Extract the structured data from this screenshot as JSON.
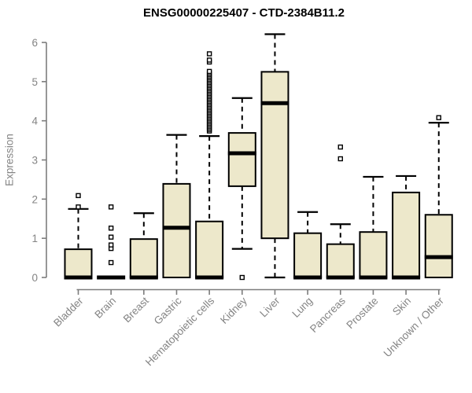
{
  "title": "ENSG00000225407 - CTD-2384B11.2",
  "chart_data": {
    "type": "boxplot",
    "title": "ENSG00000225407 - CTD-2384B11.2",
    "xlabel": "",
    "ylabel": "Expression",
    "ylim": [
      0,
      6.3
    ],
    "yticks": [
      0,
      1,
      2,
      3,
      4,
      5,
      6
    ],
    "grid": false,
    "legend": "none",
    "colors": {
      "box_fill": "#EDE8CB",
      "box_border": "#000000",
      "median": "#000000",
      "whisker": "#000000",
      "axis": "#7d7d7d",
      "tick_text": "#848484",
      "title_text": "#000000"
    },
    "categories": [
      "Bladder",
      "Brain",
      "Breast",
      "Gastric",
      "Hematopoietic cells",
      "Kidney",
      "Liver",
      "Lung",
      "Pancreas",
      "Prostate",
      "Skin",
      "Unknown / Other"
    ],
    "boxes": [
      {
        "category": "Bladder",
        "whisker_low": 0,
        "q1": 0,
        "median": 0,
        "q3": 0.72,
        "whisker_high": 1.75,
        "outliers": [
          1.8,
          2.09
        ]
      },
      {
        "category": "Brain",
        "whisker_low": 0,
        "q1": 0,
        "median": 0,
        "q3": 0,
        "whisker_high": 0,
        "outliers": [
          0.38,
          0.74,
          0.83,
          1.03,
          1.26,
          1.8
        ]
      },
      {
        "category": "Breast",
        "whisker_low": 0,
        "q1": 0,
        "median": 0,
        "q3": 0.98,
        "whisker_high": 1.64,
        "outliers": []
      },
      {
        "category": "Gastric",
        "whisker_low": 0,
        "q1": 0,
        "median": 1.27,
        "q3": 2.39,
        "whisker_high": 3.64,
        "outliers": []
      },
      {
        "category": "Hematopoietic cells",
        "whisker_low": 0,
        "q1": 0,
        "median": 0,
        "q3": 1.43,
        "whisker_high": 3.61,
        "outliers": [
          3.74,
          3.78,
          3.82,
          3.86,
          3.9,
          3.94,
          3.98,
          4.02,
          4.06,
          4.1,
          4.14,
          4.18,
          4.22,
          4.26,
          4.3,
          4.34,
          4.38,
          4.42,
          4.46,
          4.5,
          4.54,
          4.58,
          4.62,
          4.66,
          4.7,
          4.74,
          4.78,
          4.82,
          4.86,
          4.9,
          4.94,
          4.98,
          5.02,
          5.06,
          5.1,
          5.14,
          5.18,
          5.22,
          5.26,
          5.5,
          5.55,
          5.71
        ]
      },
      {
        "category": "Kidney",
        "whisker_low": 0.73,
        "q1": 2.33,
        "median": 3.17,
        "q3": 3.69,
        "whisker_high": 4.58,
        "outliers": [
          0.0
        ]
      },
      {
        "category": "Liver",
        "whisker_low": 0,
        "q1": 1.0,
        "median": 4.45,
        "q3": 5.25,
        "whisker_high": 6.21,
        "outliers": []
      },
      {
        "category": "Lung",
        "whisker_low": 0,
        "q1": 0,
        "median": 0,
        "q3": 1.13,
        "whisker_high": 1.67,
        "outliers": []
      },
      {
        "category": "Pancreas",
        "whisker_low": 0,
        "q1": 0,
        "median": 0,
        "q3": 0.85,
        "whisker_high": 1.36,
        "outliers": [
          3.03,
          3.33
        ]
      },
      {
        "category": "Prostate",
        "whisker_low": 0,
        "q1": 0,
        "median": 0,
        "q3": 1.16,
        "whisker_high": 2.57,
        "outliers": []
      },
      {
        "category": "Skin",
        "whisker_low": 0,
        "q1": 0,
        "median": 0,
        "q3": 2.17,
        "whisker_high": 2.59,
        "outliers": []
      },
      {
        "category": "Unknown / Other",
        "whisker_low": 0,
        "q1": 0,
        "median": 0.52,
        "q3": 1.6,
        "whisker_high": 3.95,
        "outliers": [
          4.08
        ]
      }
    ]
  }
}
